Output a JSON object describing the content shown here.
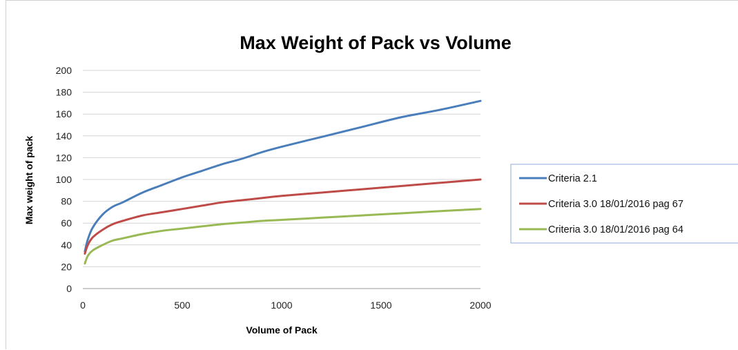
{
  "chart_data": {
    "type": "line",
    "title": "Max Weight of Pack vs Volume",
    "xlabel": "Volume of Pack",
    "ylabel": "Max weight of pack",
    "xlim": [
      0,
      2000
    ],
    "ylim": [
      0,
      200
    ],
    "xticks": [
      0,
      500,
      1000,
      1500,
      2000
    ],
    "yticks": [
      0,
      20,
      40,
      60,
      80,
      100,
      120,
      140,
      160,
      180,
      200
    ],
    "grid": "horizontal",
    "legend_position": "right",
    "x": [
      10,
      25,
      50,
      100,
      150,
      200,
      300,
      400,
      500,
      600,
      700,
      800,
      900,
      1000,
      1200,
      1400,
      1600,
      1800,
      2000
    ],
    "series": [
      {
        "name": "Criteria 2.1",
        "color": "#4a7ebb",
        "values": [
          34,
          45,
          56,
          68,
          75,
          79,
          88,
          95,
          102,
          108,
          114,
          119,
          125,
          130,
          139,
          148,
          157,
          164,
          172
        ]
      },
      {
        "name": "Criteria 3.0 18/01/2016 pag 67",
        "color": "#be4b48",
        "values": [
          32,
          40,
          47,
          54,
          59,
          62,
          67,
          70,
          73,
          76,
          79,
          81,
          83,
          85,
          88,
          91,
          94,
          97,
          100
        ]
      },
      {
        "name": "Criteria 3.0 18/01/2016 pag 64",
        "color": "#98b954",
        "values": [
          23,
          30,
          35,
          40,
          44,
          46,
          50,
          53,
          55,
          57,
          59,
          60.5,
          62,
          63,
          65,
          67,
          69,
          71,
          73
        ]
      }
    ]
  }
}
